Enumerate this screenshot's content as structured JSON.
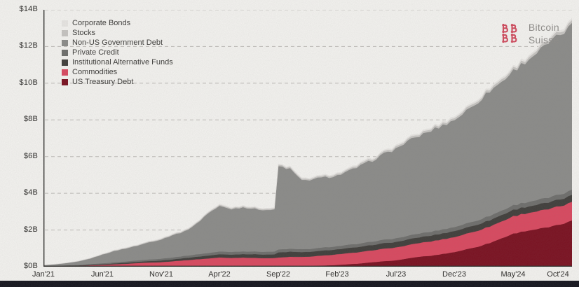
{
  "page": {
    "background": "#f4f3f0",
    "bottom_bar_color": "#14141d"
  },
  "logo": {
    "name": "Bitcoin Suisse",
    "line1": "Bitcoin",
    "line2": "Suisse",
    "mark_color": "#d14b5e",
    "text_color": "#8f8d8a"
  },
  "chart_data": {
    "type": "area",
    "stacked": true,
    "title": "",
    "unit": "USD billions",
    "ylim": [
      0,
      14
    ],
    "grid": "dashed-horizontal",
    "legend_position": "top-left",
    "y_tick_labels": [
      "$0B",
      "$2B",
      "$4B",
      "$6B",
      "$8B",
      "$10B",
      "$12B",
      "$14B"
    ],
    "x_tick_labels": [
      "Jan'21",
      "Jun'21",
      "Nov'21",
      "Apr'22",
      "Sep'22",
      "Feb'23",
      "Jul'23",
      "Dec'23",
      "May'24",
      "Oct'24"
    ],
    "x_tick_month_indices": [
      0,
      5,
      10,
      15,
      20,
      25,
      30,
      35,
      40,
      45
    ],
    "months": [
      "Jan'21",
      "Feb'21",
      "Mar'21",
      "Apr'21",
      "May'21",
      "Jun'21",
      "Jul'21",
      "Aug'21",
      "Sep'21",
      "Oct'21",
      "Nov'21",
      "Dec'21",
      "Jan'22",
      "Feb'22",
      "Mar'22",
      "Apr'22",
      "May'22",
      "Jun'22",
      "Jul'22",
      "Aug'22",
      "Sep'22",
      "Oct'22",
      "Nov'22",
      "Dec'22",
      "Jan'23",
      "Feb'23",
      "Mar'23",
      "Apr'23",
      "May'23",
      "Jun'23",
      "Jul'23",
      "Aug'23",
      "Sep'23",
      "Oct'23",
      "Nov'23",
      "Dec'23",
      "Jan'24",
      "Feb'24",
      "Mar'24",
      "Apr'24",
      "May'24",
      "Jun'24",
      "Jul'24",
      "Aug'24",
      "Sep'24",
      "Oct'24"
    ],
    "legend_order_top_to_bottom": [
      "Corporate Bonds",
      "Stocks",
      "Non-US Government Debt",
      "Private Credit",
      "Institutional Alternative Funds",
      "Commodities",
      "US Treasury Debt"
    ],
    "series": [
      {
        "name": "US Treasury Debt",
        "color": "#7a1020",
        "values": [
          0,
          0,
          0,
          0,
          0,
          0,
          0,
          0,
          0,
          0,
          0,
          0,
          0,
          0,
          0,
          0,
          0,
          0,
          0,
          0,
          0,
          0.02,
          0.03,
          0.05,
          0.07,
          0.1,
          0.14,
          0.18,
          0.25,
          0.3,
          0.35,
          0.45,
          0.55,
          0.6,
          0.7,
          0.8,
          0.95,
          1.1,
          1.3,
          1.55,
          1.8,
          1.95,
          2.05,
          2.15,
          2.3,
          2.5
        ]
      },
      {
        "name": "Commodities",
        "color": "#d9485f",
        "values": [
          0.02,
          0.03,
          0.04,
          0.05,
          0.08,
          0.1,
          0.13,
          0.16,
          0.2,
          0.23,
          0.25,
          0.3,
          0.35,
          0.4,
          0.45,
          0.5,
          0.48,
          0.5,
          0.48,
          0.47,
          0.5,
          0.52,
          0.5,
          0.52,
          0.55,
          0.58,
          0.6,
          0.62,
          0.65,
          0.68,
          0.7,
          0.72,
          0.75,
          0.78,
          0.8,
          0.82,
          0.85,
          0.88,
          0.9,
          0.92,
          0.95,
          0.96,
          0.97,
          0.98,
          1.0,
          1.0
        ]
      },
      {
        "name": "Institutional Alternative Funds",
        "color": "#403e3b",
        "values": [
          0.01,
          0.01,
          0.02,
          0.02,
          0.03,
          0.04,
          0.05,
          0.06,
          0.07,
          0.08,
          0.09,
          0.1,
          0.12,
          0.14,
          0.16,
          0.18,
          0.18,
          0.19,
          0.2,
          0.2,
          0.28,
          0.28,
          0.26,
          0.26,
          0.27,
          0.27,
          0.28,
          0.28,
          0.29,
          0.3,
          0.3,
          0.31,
          0.31,
          0.32,
          0.32,
          0.33,
          0.33,
          0.34,
          0.34,
          0.35,
          0.35,
          0.35,
          0.36,
          0.36,
          0.37,
          0.38
        ]
      },
      {
        "name": "Private Credit",
        "color": "#6e6e6c",
        "values": [
          0.01,
          0.01,
          0.02,
          0.03,
          0.04,
          0.05,
          0.06,
          0.07,
          0.08,
          0.09,
          0.1,
          0.11,
          0.12,
          0.13,
          0.14,
          0.15,
          0.15,
          0.15,
          0.15,
          0.15,
          0.16,
          0.16,
          0.16,
          0.16,
          0.17,
          0.17,
          0.18,
          0.18,
          0.19,
          0.19,
          0.2,
          0.2,
          0.21,
          0.21,
          0.22,
          0.22,
          0.23,
          0.23,
          0.24,
          0.24,
          0.25,
          0.25,
          0.26,
          0.26,
          0.27,
          0.28
        ]
      },
      {
        "name": "Non-US Government Debt",
        "color": "#8b8b89",
        "values": [
          0.04,
          0.08,
          0.12,
          0.19,
          0.3,
          0.47,
          0.61,
          0.71,
          0.8,
          0.94,
          1.04,
          1.22,
          1.33,
          1.65,
          2.17,
          2.47,
          2.34,
          2.41,
          2.32,
          2.28,
          4.54,
          4.35,
          3.73,
          3.79,
          3.81,
          3.85,
          4.01,
          4.24,
          4.42,
          4.68,
          4.88,
          5.15,
          5.31,
          5.51,
          5.67,
          5.84,
          6.14,
          6.45,
          6.81,
          7.02,
          7.33,
          7.66,
          8.02,
          8.41,
          8.7,
          8.98
        ]
      },
      {
        "name": "Stocks",
        "color": "#c6c4c1",
        "values": [
          0.01,
          0.01,
          0.01,
          0.02,
          0.02,
          0.02,
          0.03,
          0.03,
          0.03,
          0.04,
          0.04,
          0.04,
          0.05,
          0.05,
          0.05,
          0.06,
          0.06,
          0.06,
          0.06,
          0.06,
          0.07,
          0.07,
          0.07,
          0.07,
          0.08,
          0.08,
          0.08,
          0.09,
          0.09,
          0.09,
          0.1,
          0.1,
          0.1,
          0.11,
          0.11,
          0.11,
          0.12,
          0.12,
          0.12,
          0.13,
          0.13,
          0.13,
          0.14,
          0.14,
          0.15,
          0.15
        ]
      },
      {
        "name": "Corporate Bonds",
        "color": "#e7e5e2",
        "values": [
          0.01,
          0.01,
          0.01,
          0.01,
          0.01,
          0.02,
          0.02,
          0.02,
          0.02,
          0.02,
          0.03,
          0.03,
          0.03,
          0.03,
          0.03,
          0.04,
          0.04,
          0.04,
          0.04,
          0.04,
          0.05,
          0.05,
          0.05,
          0.05,
          0.05,
          0.05,
          0.06,
          0.06,
          0.06,
          0.06,
          0.07,
          0.07,
          0.07,
          0.07,
          0.08,
          0.08,
          0.08,
          0.08,
          0.09,
          0.09,
          0.09,
          0.1,
          0.1,
          0.1,
          0.11,
          0.11
        ]
      }
    ]
  }
}
